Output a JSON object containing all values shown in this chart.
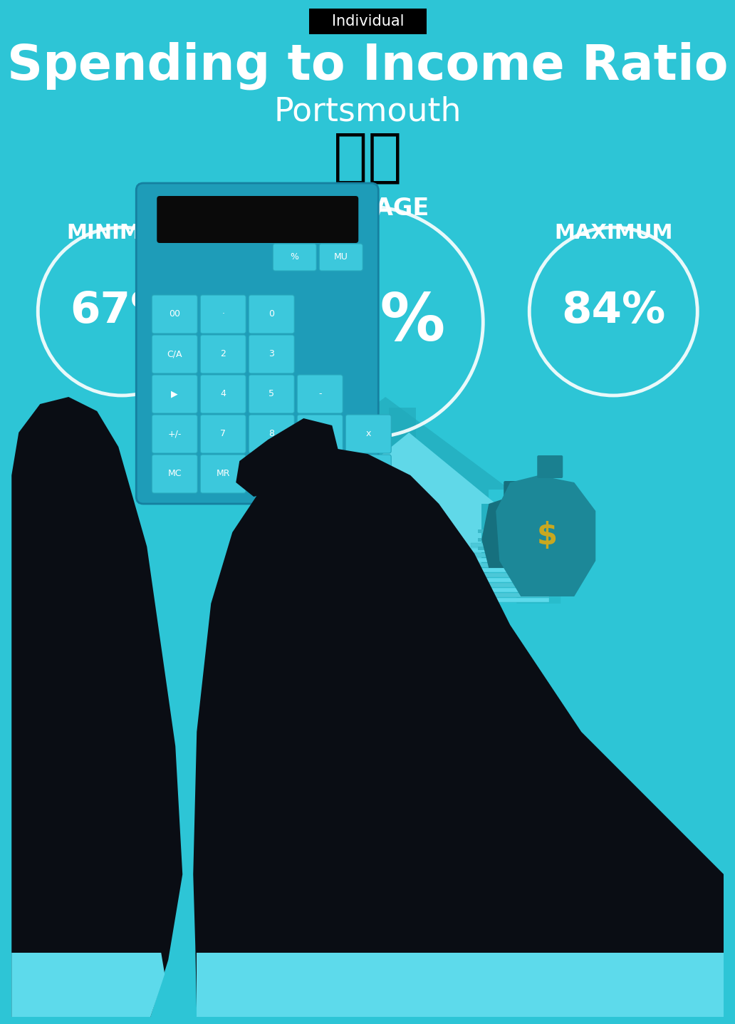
{
  "title": "Spending to Income Ratio",
  "subtitle": "Portsmouth",
  "tag_label": "Individual",
  "bg_color": "#2DC5D6",
  "text_color": "#FFFFFF",
  "tag_bg": "#000000",
  "min_label": "MINIMUM",
  "avg_label": "AVERAGE",
  "max_label": "MAXIMUM",
  "min_value": "67%",
  "avg_value": "75%",
  "max_value": "84%",
  "flag_emoji": "🇬🇧",
  "arrow_color": "#25B5C5",
  "house_color": "#22AABB",
  "house_light": "#60D8E8",
  "calc_body": "#1E9CB8",
  "calc_screen": "#0a0a0a",
  "calc_btn": "#3CC8DC",
  "calc_btn_edge": "#28A8BC",
  "hand_dark": "#0a0d14",
  "cuff_color": "#5DDAEB",
  "bag_color": "#1C8898",
  "bag_dark": "#16707E",
  "money_color": "#5DDAEB",
  "money_dark": "#1E9CB8",
  "gold_color": "#C8A820"
}
